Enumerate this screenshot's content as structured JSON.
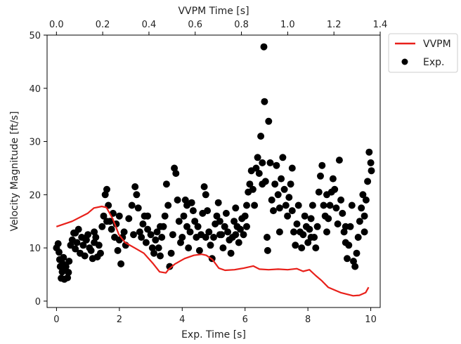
{
  "chart_data": {
    "type": "scatter",
    "xlabel": "Exp. Time [s]",
    "x2label": "VVPM Time [s]",
    "ylabel": "Velocity Magnitude [ft/s]",
    "xlim": [
      -0.3,
      10.3
    ],
    "x2lim": [
      -0.0405,
      1.4
    ],
    "ylim": [
      -1.2,
      50
    ],
    "x_ticks": [
      0,
      2,
      4,
      6,
      8,
      10
    ],
    "x2_ticks": [
      0.0,
      0.2,
      0.4,
      0.6,
      0.8,
      1.0,
      1.2,
      1.4
    ],
    "x2_tick_labels": [
      "0.0",
      "0.2",
      "0.4",
      "0.6",
      "0.8",
      "1.0",
      "1.2",
      "1.4"
    ],
    "y_ticks": [
      0,
      10,
      20,
      30,
      40,
      50
    ],
    "grid": false,
    "legend_position": "outside-top-right",
    "series": [
      {
        "name": "VVPM",
        "kind": "line",
        "axis": "top",
        "color": "#e8201a",
        "x": [
          0.0,
          0.068,
          0.135,
          0.162,
          0.196,
          0.216,
          0.243,
          0.27,
          0.297,
          0.338,
          0.378,
          0.419,
          0.446,
          0.473,
          0.486,
          0.513,
          0.554,
          0.594,
          0.628,
          0.648,
          0.675,
          0.702,
          0.729,
          0.77,
          0.81,
          0.851,
          0.878,
          0.918,
          0.959,
          1.0,
          1.04,
          1.067,
          1.094,
          1.121,
          1.148,
          1.175,
          1.202,
          1.229,
          1.256,
          1.283,
          1.31,
          1.337,
          1.35
        ],
        "y": [
          14.0,
          15.0,
          16.5,
          17.5,
          17.8,
          17.6,
          15.5,
          12.5,
          11.0,
          10.0,
          9.0,
          7.0,
          5.5,
          5.3,
          6.0,
          7.0,
          8.0,
          8.6,
          8.8,
          8.6,
          7.8,
          6.2,
          5.8,
          5.9,
          6.2,
          6.6,
          6.0,
          5.9,
          6.0,
          5.9,
          6.1,
          5.6,
          5.9,
          4.8,
          3.8,
          2.6,
          2.1,
          1.6,
          1.3,
          1.0,
          1.1,
          1.6,
          2.6
        ]
      },
      {
        "name": "Exp.",
        "kind": "scatter",
        "axis": "bottom",
        "color": "#000000",
        "points": [
          [
            0.0,
            10.0
          ],
          [
            0.05,
            10.8
          ],
          [
            0.08,
            9.2
          ],
          [
            0.1,
            7.8
          ],
          [
            0.12,
            6.5
          ],
          [
            0.15,
            4.3
          ],
          [
            0.18,
            5.5
          ],
          [
            0.2,
            7.0
          ],
          [
            0.22,
            8.2
          ],
          [
            0.25,
            4.1
          ],
          [
            0.28,
            6.2
          ],
          [
            0.3,
            6.5
          ],
          [
            0.35,
            4.4
          ],
          [
            0.38,
            5.4
          ],
          [
            0.4,
            7.5
          ],
          [
            0.45,
            10.5
          ],
          [
            0.5,
            11.5
          ],
          [
            0.55,
            12.8
          ],
          [
            0.6,
            9.8
          ],
          [
            0.65,
            11.0
          ],
          [
            0.7,
            13.5
          ],
          [
            0.75,
            9.0
          ],
          [
            0.8,
            12.0
          ],
          [
            0.85,
            10.5
          ],
          [
            0.9,
            8.5
          ],
          [
            0.95,
            11.5
          ],
          [
            1.0,
            12.5
          ],
          [
            1.05,
            10.0
          ],
          [
            1.1,
            9.5
          ],
          [
            1.15,
            8.0
          ],
          [
            1.2,
            11.0
          ],
          [
            1.25,
            12.0
          ],
          [
            1.3,
            8.3
          ],
          [
            1.35,
            10.5
          ],
          [
            1.4,
            9.0
          ],
          [
            1.45,
            14.0
          ],
          [
            1.5,
            16.0
          ],
          [
            1.55,
            20.0
          ],
          [
            1.6,
            21.0
          ],
          [
            1.65,
            18.0
          ],
          [
            1.7,
            15.0
          ],
          [
            1.75,
            13.5
          ],
          [
            1.8,
            16.5
          ],
          [
            1.85,
            12.0
          ],
          [
            1.9,
            14.5
          ],
          [
            1.95,
            9.5
          ],
          [
            2.0,
            11.5
          ],
          [
            2.05,
            7.0
          ],
          [
            2.1,
            12.0
          ],
          [
            2.15,
            13.0
          ],
          [
            2.2,
            10.5
          ],
          [
            2.3,
            15.5
          ],
          [
            2.4,
            18.0
          ],
          [
            2.5,
            21.5
          ],
          [
            2.55,
            20.0
          ],
          [
            2.6,
            17.5
          ],
          [
            2.65,
            13.0
          ],
          [
            2.7,
            12.0
          ],
          [
            2.75,
            14.5
          ],
          [
            2.8,
            16.0
          ],
          [
            2.85,
            11.0
          ],
          [
            2.9,
            13.5
          ],
          [
            3.0,
            12.5
          ],
          [
            3.05,
            10.0
          ],
          [
            3.1,
            9.0
          ],
          [
            3.15,
            11.5
          ],
          [
            3.2,
            13.0
          ],
          [
            3.25,
            10.0
          ],
          [
            3.3,
            8.5
          ],
          [
            3.35,
            12.0
          ],
          [
            3.4,
            14.0
          ],
          [
            3.45,
            16.0
          ],
          [
            3.5,
            22.0
          ],
          [
            3.55,
            18.0
          ],
          [
            3.6,
            6.5
          ],
          [
            3.65,
            9.0
          ],
          [
            3.7,
            12.5
          ],
          [
            3.75,
            25.0
          ],
          [
            3.8,
            24.0
          ],
          [
            3.85,
            19.0
          ],
          [
            3.9,
            15.0
          ],
          [
            3.95,
            11.0
          ],
          [
            4.0,
            12.0
          ],
          [
            4.05,
            16.0
          ],
          [
            4.1,
            19.0
          ],
          [
            4.15,
            14.0
          ],
          [
            4.2,
            10.0
          ],
          [
            4.25,
            13.0
          ],
          [
            4.3,
            18.5
          ],
          [
            4.35,
            17.0
          ],
          [
            4.4,
            15.0
          ],
          [
            4.45,
            12.0
          ],
          [
            4.5,
            14.0
          ],
          [
            4.55,
            9.5
          ],
          [
            4.6,
            12.5
          ],
          [
            4.65,
            16.5
          ],
          [
            4.7,
            21.5
          ],
          [
            4.75,
            20.0
          ],
          [
            4.8,
            17.0
          ],
          [
            4.85,
            13.0
          ],
          [
            4.9,
            10.5
          ],
          [
            4.95,
            8.0
          ],
          [
            5.0,
            12.0
          ],
          [
            5.05,
            14.5
          ],
          [
            5.1,
            16.0
          ],
          [
            5.15,
            18.5
          ],
          [
            5.2,
            15.0
          ],
          [
            5.25,
            12.5
          ],
          [
            5.3,
            10.0
          ],
          [
            5.35,
            14.0
          ],
          [
            5.4,
            16.5
          ],
          [
            5.45,
            13.0
          ],
          [
            5.5,
            11.5
          ],
          [
            5.55,
            9.0
          ],
          [
            5.6,
            12.0
          ],
          [
            5.65,
            15.0
          ],
          [
            5.7,
            17.5
          ],
          [
            5.75,
            14.0
          ],
          [
            5.8,
            11.0
          ],
          [
            5.85,
            13.5
          ],
          [
            5.9,
            15.5
          ],
          [
            5.95,
            12.5
          ],
          [
            6.0,
            16.0
          ],
          [
            6.05,
            18.0
          ],
          [
            6.1,
            20.5
          ],
          [
            6.15,
            22.0
          ],
          [
            6.2,
            24.5
          ],
          [
            6.25,
            21.0
          ],
          [
            6.3,
            18.0
          ],
          [
            6.35,
            25.0
          ],
          [
            6.4,
            27.0
          ],
          [
            6.45,
            24.0
          ],
          [
            6.5,
            31.0
          ],
          [
            6.55,
            26.0
          ],
          [
            6.6,
            47.8
          ],
          [
            6.62,
            37.5
          ],
          [
            6.65,
            22.5
          ],
          [
            6.7,
            12.0
          ],
          [
            6.72,
            9.5
          ],
          [
            6.75,
            33.8
          ],
          [
            6.8,
            26.0
          ],
          [
            6.85,
            19.0
          ],
          [
            6.9,
            17.0
          ],
          [
            6.95,
            22.0
          ],
          [
            7.0,
            25.5
          ],
          [
            7.05,
            20.0
          ],
          [
            7.1,
            17.5
          ],
          [
            7.15,
            23.0
          ],
          [
            7.2,
            27.0
          ],
          [
            7.25,
            21.0
          ],
          [
            7.3,
            18.0
          ],
          [
            7.35,
            16.0
          ],
          [
            7.4,
            19.5
          ],
          [
            7.45,
            22.0
          ],
          [
            7.5,
            17.0
          ],
          [
            7.55,
            13.0
          ],
          [
            7.6,
            10.5
          ],
          [
            7.65,
            14.5
          ],
          [
            7.7,
            18.0
          ],
          [
            7.75,
            13.0
          ],
          [
            7.8,
            10.0
          ],
          [
            7.85,
            12.5
          ],
          [
            7.9,
            16.0
          ],
          [
            7.95,
            14.0
          ],
          [
            8.0,
            11.0
          ],
          [
            8.05,
            13.5
          ],
          [
            8.1,
            15.5
          ],
          [
            8.15,
            18.0
          ],
          [
            8.2,
            12.0
          ],
          [
            8.25,
            10.0
          ],
          [
            8.3,
            14.0
          ],
          [
            8.35,
            20.5
          ],
          [
            8.4,
            23.5
          ],
          [
            8.45,
            25.5
          ],
          [
            8.5,
            18.0
          ],
          [
            8.55,
            16.0
          ],
          [
            8.6,
            13.0
          ],
          [
            8.65,
            15.5
          ],
          [
            8.7,
            18.0
          ],
          [
            8.75,
            20.5
          ],
          [
            8.8,
            23.0
          ],
          [
            8.85,
            21.0
          ],
          [
            8.9,
            17.5
          ],
          [
            8.95,
            14.5
          ],
          [
            9.0,
            26.5
          ],
          [
            9.05,
            19.0
          ],
          [
            9.1,
            16.5
          ],
          [
            9.15,
            13.0
          ],
          [
            9.2,
            11.0
          ],
          [
            9.25,
            8.0
          ],
          [
            9.3,
            10.5
          ],
          [
            9.35,
            14.0
          ],
          [
            9.4,
            18.0
          ],
          [
            9.45,
            7.5
          ],
          [
            9.5,
            6.5
          ],
          [
            9.55,
            9.0
          ],
          [
            9.6,
            12.0
          ],
          [
            9.65,
            15.0
          ],
          [
            9.7,
            17.5
          ],
          [
            9.75,
            20.0
          ],
          [
            9.8,
            16.0
          ],
          [
            9.85,
            19.0
          ],
          [
            9.9,
            22.5
          ],
          [
            9.95,
            28.0
          ],
          [
            10.0,
            26.0
          ],
          [
            10.02,
            24.5
          ],
          [
            0.6,
            12.8
          ],
          [
            0.9,
            11.8
          ],
          [
            1.2,
            13.0
          ],
          [
            1.6,
            15.0
          ],
          [
            2.0,
            16.0
          ],
          [
            2.45,
            12.5
          ],
          [
            2.9,
            16.0
          ],
          [
            3.3,
            14.0
          ],
          [
            4.15,
            18.0
          ],
          [
            4.75,
            12.0
          ],
          [
            5.2,
            12.5
          ],
          [
            5.7,
            12.5
          ],
          [
            6.05,
            14.0
          ],
          [
            6.55,
            22.0
          ],
          [
            7.1,
            13.0
          ],
          [
            7.5,
            25.0
          ],
          [
            8.1,
            12.0
          ],
          [
            8.6,
            20.0
          ],
          [
            9.2,
            14.0
          ],
          [
            9.8,
            13.0
          ]
        ]
      }
    ]
  }
}
